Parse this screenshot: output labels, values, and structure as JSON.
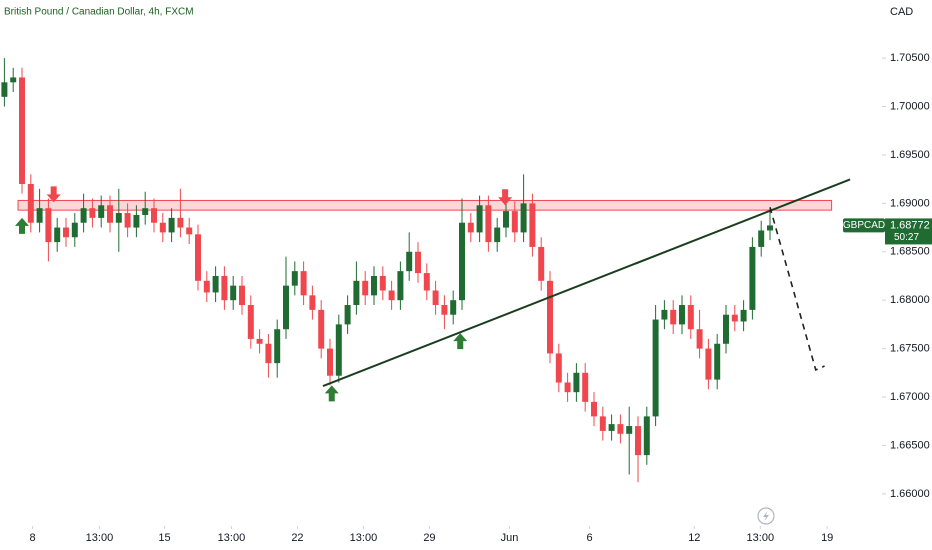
{
  "chart_data": {
    "type": "candlestick",
    "title": "British Pound / Canadian Dollar, 4h, FXCM",
    "currency": "CAD",
    "symbol": "GBPCAD",
    "countdown": "50:27",
    "up_color": "#1f6b32",
    "down_color": "#f0474e",
    "xlim": [
      -0.5,
      99.5
    ],
    "ylim": [
      1.6573,
      1.711
    ],
    "xticks": [
      {
        "value": 3.2,
        "label": "8"
      },
      {
        "value": 10.8,
        "label": "13:00"
      },
      {
        "value": 18.2,
        "label": "15"
      },
      {
        "value": 25.8,
        "label": "13:00"
      },
      {
        "value": 33.3,
        "label": "22"
      },
      {
        "value": 40.8,
        "label": "13:00"
      },
      {
        "value": 48.3,
        "label": "29"
      },
      {
        "value": 57.4,
        "label": "Jun"
      },
      {
        "value": 66.5,
        "label": "6"
      },
      {
        "value": 78.4,
        "label": "12"
      },
      {
        "value": 85.9,
        "label": "13:00"
      },
      {
        "value": 93.5,
        "label": "19"
      }
    ],
    "yticks": [
      {
        "value": 1.66,
        "label": "1.66000"
      },
      {
        "value": 1.665,
        "label": "1.66500"
      },
      {
        "value": 1.67,
        "label": "1.67000"
      },
      {
        "value": 1.675,
        "label": "1.67500"
      },
      {
        "value": 1.68,
        "label": "1.68000"
      },
      {
        "value": 1.685,
        "label": "1.68500"
      },
      {
        "value": 1.69,
        "label": "1.69000"
      },
      {
        "value": 1.695,
        "label": "1.69500"
      },
      {
        "value": 1.7,
        "label": "1.70000"
      },
      {
        "value": 1.705,
        "label": "1.70500"
      }
    ],
    "open": [
      1.701,
      1.7025,
      1.703,
      1.692,
      1.688,
      1.6895,
      1.686,
      1.6875,
      1.6865,
      1.688,
      1.6895,
      1.6885,
      1.6898,
      1.688,
      1.689,
      1.6875,
      1.6888,
      1.6895,
      1.688,
      1.687,
      1.6885,
      1.6875,
      1.6868,
      1.682,
      1.6808,
      1.6825,
      1.68,
      1.6815,
      1.6795,
      1.676,
      1.6755,
      1.6735,
      1.677,
      1.6815,
      1.683,
      1.6805,
      1.679,
      1.675,
      1.6722,
      1.6775,
      1.6795,
      1.682,
      1.6805,
      1.6825,
      1.681,
      1.68,
      1.683,
      1.685,
      1.6828,
      1.681,
      1.6795,
      1.6785,
      1.68,
      1.688,
      1.687,
      1.6898,
      1.686,
      1.6875,
      1.6892,
      1.687,
      1.69,
      1.6855,
      1.682,
      1.6745,
      1.6715,
      1.6705,
      1.6725,
      1.6695,
      1.668,
      1.6665,
      1.6672,
      1.6662,
      1.667,
      1.664,
      1.668,
      1.678,
      1.679,
      1.6775,
      1.6795,
      1.677,
      1.675,
      1.6718,
      1.6755,
      1.6785,
      1.6778,
      1.679,
      1.6855,
      1.6872
    ],
    "high": [
      1.705,
      1.704,
      1.704,
      1.693,
      1.6915,
      1.6905,
      1.6885,
      1.6885,
      1.689,
      1.691,
      1.6905,
      1.6908,
      1.6908,
      1.6915,
      1.69,
      1.6898,
      1.6912,
      1.6905,
      1.689,
      1.6895,
      1.6915,
      1.6885,
      1.6878,
      1.683,
      1.6835,
      1.6835,
      1.6825,
      1.6825,
      1.6805,
      1.677,
      1.6765,
      1.678,
      1.6845,
      1.684,
      1.684,
      1.6815,
      1.68,
      1.676,
      1.6785,
      1.6805,
      1.684,
      1.683,
      1.6835,
      1.6835,
      1.682,
      1.684,
      1.687,
      1.686,
      1.6838,
      1.682,
      1.6805,
      1.681,
      1.6905,
      1.689,
      1.6908,
      1.6908,
      1.6885,
      1.6902,
      1.6902,
      1.693,
      1.691,
      1.6865,
      1.683,
      1.6755,
      1.6725,
      1.6735,
      1.6735,
      1.6705,
      1.669,
      1.6682,
      1.6682,
      1.669,
      1.668,
      1.669,
      1.6795,
      1.68,
      1.68,
      1.6805,
      1.6805,
      1.679,
      1.676,
      1.6765,
      1.6795,
      1.6795,
      1.68,
      1.6865,
      1.6882,
      1.6895
    ],
    "low": [
      1.7,
      1.7015,
      1.691,
      1.687,
      1.687,
      1.684,
      1.685,
      1.6855,
      1.6855,
      1.687,
      1.6875,
      1.6875,
      1.687,
      1.685,
      1.6865,
      1.6865,
      1.6878,
      1.687,
      1.686,
      1.686,
      1.6865,
      1.6858,
      1.681,
      1.6798,
      1.6798,
      1.679,
      1.679,
      1.6785,
      1.675,
      1.6745,
      1.672,
      1.672,
      1.676,
      1.6805,
      1.6795,
      1.678,
      1.674,
      1.6712,
      1.6715,
      1.6765,
      1.6785,
      1.6795,
      1.6795,
      1.68,
      1.679,
      1.679,
      1.682,
      1.6818,
      1.68,
      1.6785,
      1.677,
      1.6775,
      1.679,
      1.686,
      1.686,
      1.685,
      1.685,
      1.6865,
      1.686,
      1.686,
      1.6845,
      1.681,
      1.6735,
      1.6705,
      1.6695,
      1.6695,
      1.6685,
      1.667,
      1.6655,
      1.6655,
      1.6652,
      1.662,
      1.6612,
      1.663,
      1.667,
      1.677,
      1.6765,
      1.6765,
      1.676,
      1.674,
      1.6708,
      1.6708,
      1.6745,
      1.6768,
      1.6768,
      1.678,
      1.6845,
      1.6862
    ],
    "close": [
      1.7025,
      1.703,
      1.692,
      1.688,
      1.6895,
      1.686,
      1.6875,
      1.6865,
      1.688,
      1.6895,
      1.6885,
      1.6898,
      1.688,
      1.689,
      1.6875,
      1.6888,
      1.6895,
      1.688,
      1.687,
      1.6885,
      1.6875,
      1.6868,
      1.682,
      1.6808,
      1.6825,
      1.68,
      1.6815,
      1.6795,
      1.676,
      1.6755,
      1.6735,
      1.677,
      1.6815,
      1.683,
      1.6805,
      1.679,
      1.675,
      1.6722,
      1.6775,
      1.6795,
      1.682,
      1.6805,
      1.6825,
      1.681,
      1.68,
      1.683,
      1.685,
      1.6828,
      1.681,
      1.6795,
      1.6785,
      1.68,
      1.688,
      1.687,
      1.6898,
      1.686,
      1.6875,
      1.6892,
      1.687,
      1.69,
      1.6855,
      1.682,
      1.6745,
      1.6715,
      1.6705,
      1.6725,
      1.6695,
      1.668,
      1.6665,
      1.6672,
      1.6662,
      1.667,
      1.664,
      1.668,
      1.678,
      1.679,
      1.6775,
      1.6795,
      1.677,
      1.675,
      1.6718,
      1.6755,
      1.6785,
      1.6778,
      1.679,
      1.6855,
      1.6872,
      1.68772
    ],
    "zone": {
      "from": 1.55,
      "to": 94.0,
      "low": 1.6893,
      "high": 1.6903,
      "color": "#f0474e"
    },
    "trendline": {
      "x": [
        36.2,
        96.1
      ],
      "y": [
        1.67113,
        1.69247
      ],
      "color": "#1b3d1f"
    },
    "projection": {
      "x": [
        87.0,
        92.2,
        93.2
      ],
      "y": [
        1.6896,
        1.6728,
        1.6732
      ],
      "color": "#222222"
    },
    "up_arrows": {
      "x": [
        2.0,
        37.2,
        51.8
      ],
      "y": [
        1.6885,
        1.6712,
        1.6766
      ],
      "color": "#2e7d32"
    },
    "down_arrows": {
      "x": [
        5.6,
        56.9
      ],
      "y": [
        1.6901,
        1.6898
      ],
      "color": "#f0474e"
    }
  }
}
